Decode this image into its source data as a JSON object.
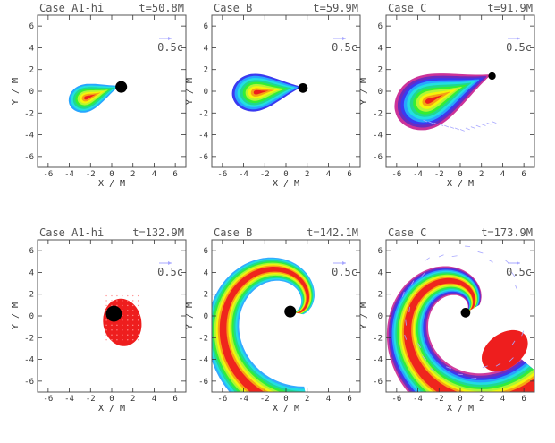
{
  "figure": {
    "vector_label": "0.5c",
    "xlabel": "X / M",
    "ylabel": "Y / M",
    "ticks": [
      -6,
      -4,
      -2,
      0,
      2,
      4,
      6
    ],
    "colors": {
      "bh": "#000000",
      "vector": "#a8a8ff",
      "frame": "#555555",
      "contours": [
        "#cc3399",
        "#6a2cc0",
        "#3a3af0",
        "#27a6ff",
        "#22e0e0",
        "#20d890",
        "#34ee34",
        "#b4f534",
        "#f5f50a",
        "#f5a014",
        "#ee1e1e"
      ]
    }
  },
  "chart_data": [
    {
      "type": "contour",
      "title": "Case A1-hi",
      "time": "t=50.8M",
      "xlim": [
        -7,
        7
      ],
      "ylim": [
        -7,
        7
      ],
      "black_hole": {
        "x": 0.9,
        "y": 0.4,
        "r": 0.55
      },
      "morphology": "compact teardrop",
      "levels": 8,
      "center": [
        -2.4,
        -0.6
      ]
    },
    {
      "type": "contour",
      "title": "Case B",
      "time": "t=59.9M",
      "xlim": [
        -7,
        7
      ],
      "ylim": [
        -7,
        7
      ],
      "black_hole": {
        "x": 1.6,
        "y": 0.3,
        "r": 0.45
      },
      "morphology": "teardrop",
      "levels": 9,
      "center": [
        -2.8,
        -0.1
      ]
    },
    {
      "type": "contour",
      "title": "Case C",
      "time": "t=91.9M",
      "xlim": [
        -7,
        7
      ],
      "ylim": [
        -7,
        7
      ],
      "black_hole": {
        "x": 3.0,
        "y": 1.4,
        "r": 0.35
      },
      "morphology": "large teardrop with tail",
      "levels": 11,
      "center": [
        -3.0,
        -0.9
      ]
    },
    {
      "type": "contour",
      "title": "Case A1-hi",
      "time": "t=132.9M",
      "xlim": [
        -7,
        7
      ],
      "ylim": [
        -7,
        7
      ],
      "black_hole": {
        "x": 0.2,
        "y": 0.2,
        "r": 0.75
      },
      "morphology": "remnant blob",
      "levels": 1,
      "center": [
        1.0,
        -0.6
      ]
    },
    {
      "type": "contour",
      "title": "Case B",
      "time": "t=142.1M",
      "xlim": [
        -7,
        7
      ],
      "ylim": [
        -7,
        7
      ],
      "black_hole": {
        "x": 0.4,
        "y": 0.4,
        "r": 0.55
      },
      "morphology": "spiral arm",
      "levels": 8,
      "center": [
        0.4,
        0.4
      ]
    },
    {
      "type": "contour",
      "title": "Case C",
      "time": "t=173.9M",
      "xlim": [
        -7,
        7
      ],
      "ylim": [
        -7,
        7
      ],
      "black_hole": {
        "x": 0.5,
        "y": 0.3,
        "r": 0.45
      },
      "morphology": "spiral disk",
      "levels": 11,
      "center": [
        0.5,
        0.3
      ]
    }
  ]
}
